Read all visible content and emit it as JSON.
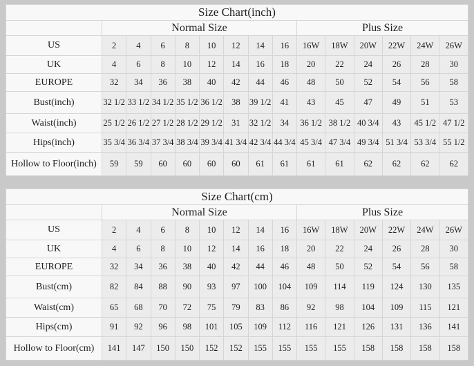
{
  "colors": {
    "page_bg": "#c9c9c9",
    "table_bg": "#f8f8f8",
    "cell_bg": "#ececec",
    "border": "#d5d5d5",
    "outer_border": "#c4c4c4",
    "text": "#1f1f1f"
  },
  "chart_data": [
    {
      "type": "table",
      "title": "Size Chart(inch)",
      "groups": [
        {
          "label": "Normal Size",
          "span": 8
        },
        {
          "label": "Plus Size",
          "span": 6
        }
      ],
      "rows": [
        {
          "label": "US",
          "values": [
            "2",
            "4",
            "6",
            "8",
            "10",
            "12",
            "14",
            "16",
            "16W",
            "18W",
            "20W",
            "22W",
            "24W",
            "26W"
          ]
        },
        {
          "label": "UK",
          "values": [
            "4",
            "6",
            "8",
            "10",
            "12",
            "14",
            "16",
            "18",
            "20",
            "22",
            "24",
            "26",
            "28",
            "30"
          ]
        },
        {
          "label": "EUROPE",
          "values": [
            "32",
            "34",
            "36",
            "38",
            "40",
            "42",
            "44",
            "46",
            "48",
            "50",
            "52",
            "54",
            "56",
            "58"
          ]
        },
        {
          "label": "Bust(inch)",
          "values": [
            "32 1/2",
            "33 1/2",
            "34 1/2",
            "35 1/2",
            "36 1/2",
            "38",
            "39 1/2",
            "41",
            "43",
            "45",
            "47",
            "49",
            "51",
            "53"
          ]
        },
        {
          "label": "Waist(inch)",
          "values": [
            "25 1/2",
            "26 1/2",
            "27 1/2",
            "28 1/2",
            "29 1/2",
            "31",
            "32 1/2",
            "34",
            "36 1/2",
            "38 1/2",
            "40 3/4",
            "43",
            "45 1/2",
            "47 1/2"
          ]
        },
        {
          "label": "Hips(inch)",
          "values": [
            "35 3/4",
            "36 3/4",
            "37 3/4",
            "38 3/4",
            "39 3/4",
            "41 3/4",
            "42 3/4",
            "44 3/4",
            "45 3/4",
            "47 3/4",
            "49 3/4",
            "51 3/4",
            "53 3/4",
            "55 1/2"
          ]
        },
        {
          "label": "Hollow to Floor(inch)",
          "values": [
            "59",
            "59",
            "60",
            "60",
            "60",
            "60",
            "61",
            "61",
            "61",
            "61",
            "62",
            "62",
            "62",
            "62"
          ]
        }
      ]
    },
    {
      "type": "table",
      "title": "Size Chart(cm)",
      "groups": [
        {
          "label": "Normal Size",
          "span": 8
        },
        {
          "label": "Plus Size",
          "span": 6
        }
      ],
      "rows": [
        {
          "label": "US",
          "values": [
            "2",
            "4",
            "6",
            "8",
            "10",
            "12",
            "14",
            "16",
            "16W",
            "18W",
            "20W",
            "22W",
            "24W",
            "26W"
          ]
        },
        {
          "label": "UK",
          "values": [
            "4",
            "6",
            "8",
            "10",
            "12",
            "14",
            "16",
            "18",
            "20",
            "22",
            "24",
            "26",
            "28",
            "30"
          ]
        },
        {
          "label": "EUROPE",
          "values": [
            "32",
            "34",
            "36",
            "38",
            "40",
            "42",
            "44",
            "46",
            "48",
            "50",
            "52",
            "54",
            "56",
            "58"
          ]
        },
        {
          "label": "Bust(cm)",
          "values": [
            "82",
            "84",
            "88",
            "90",
            "93",
            "97",
            "100",
            "104",
            "109",
            "114",
            "119",
            "124",
            "130",
            "135"
          ]
        },
        {
          "label": "Waist(cm)",
          "values": [
            "65",
            "68",
            "70",
            "72",
            "75",
            "79",
            "83",
            "86",
            "92",
            "98",
            "104",
            "109",
            "115",
            "121"
          ]
        },
        {
          "label": "Hips(cm)",
          "values": [
            "91",
            "92",
            "96",
            "98",
            "101",
            "105",
            "109",
            "112",
            "116",
            "121",
            "126",
            "131",
            "136",
            "141"
          ]
        },
        {
          "label": "Hollow to Floor(cm)",
          "values": [
            "141",
            "147",
            "150",
            "150",
            "152",
            "152",
            "155",
            "155",
            "155",
            "155",
            "158",
            "158",
            "158",
            "158"
          ]
        }
      ]
    }
  ]
}
